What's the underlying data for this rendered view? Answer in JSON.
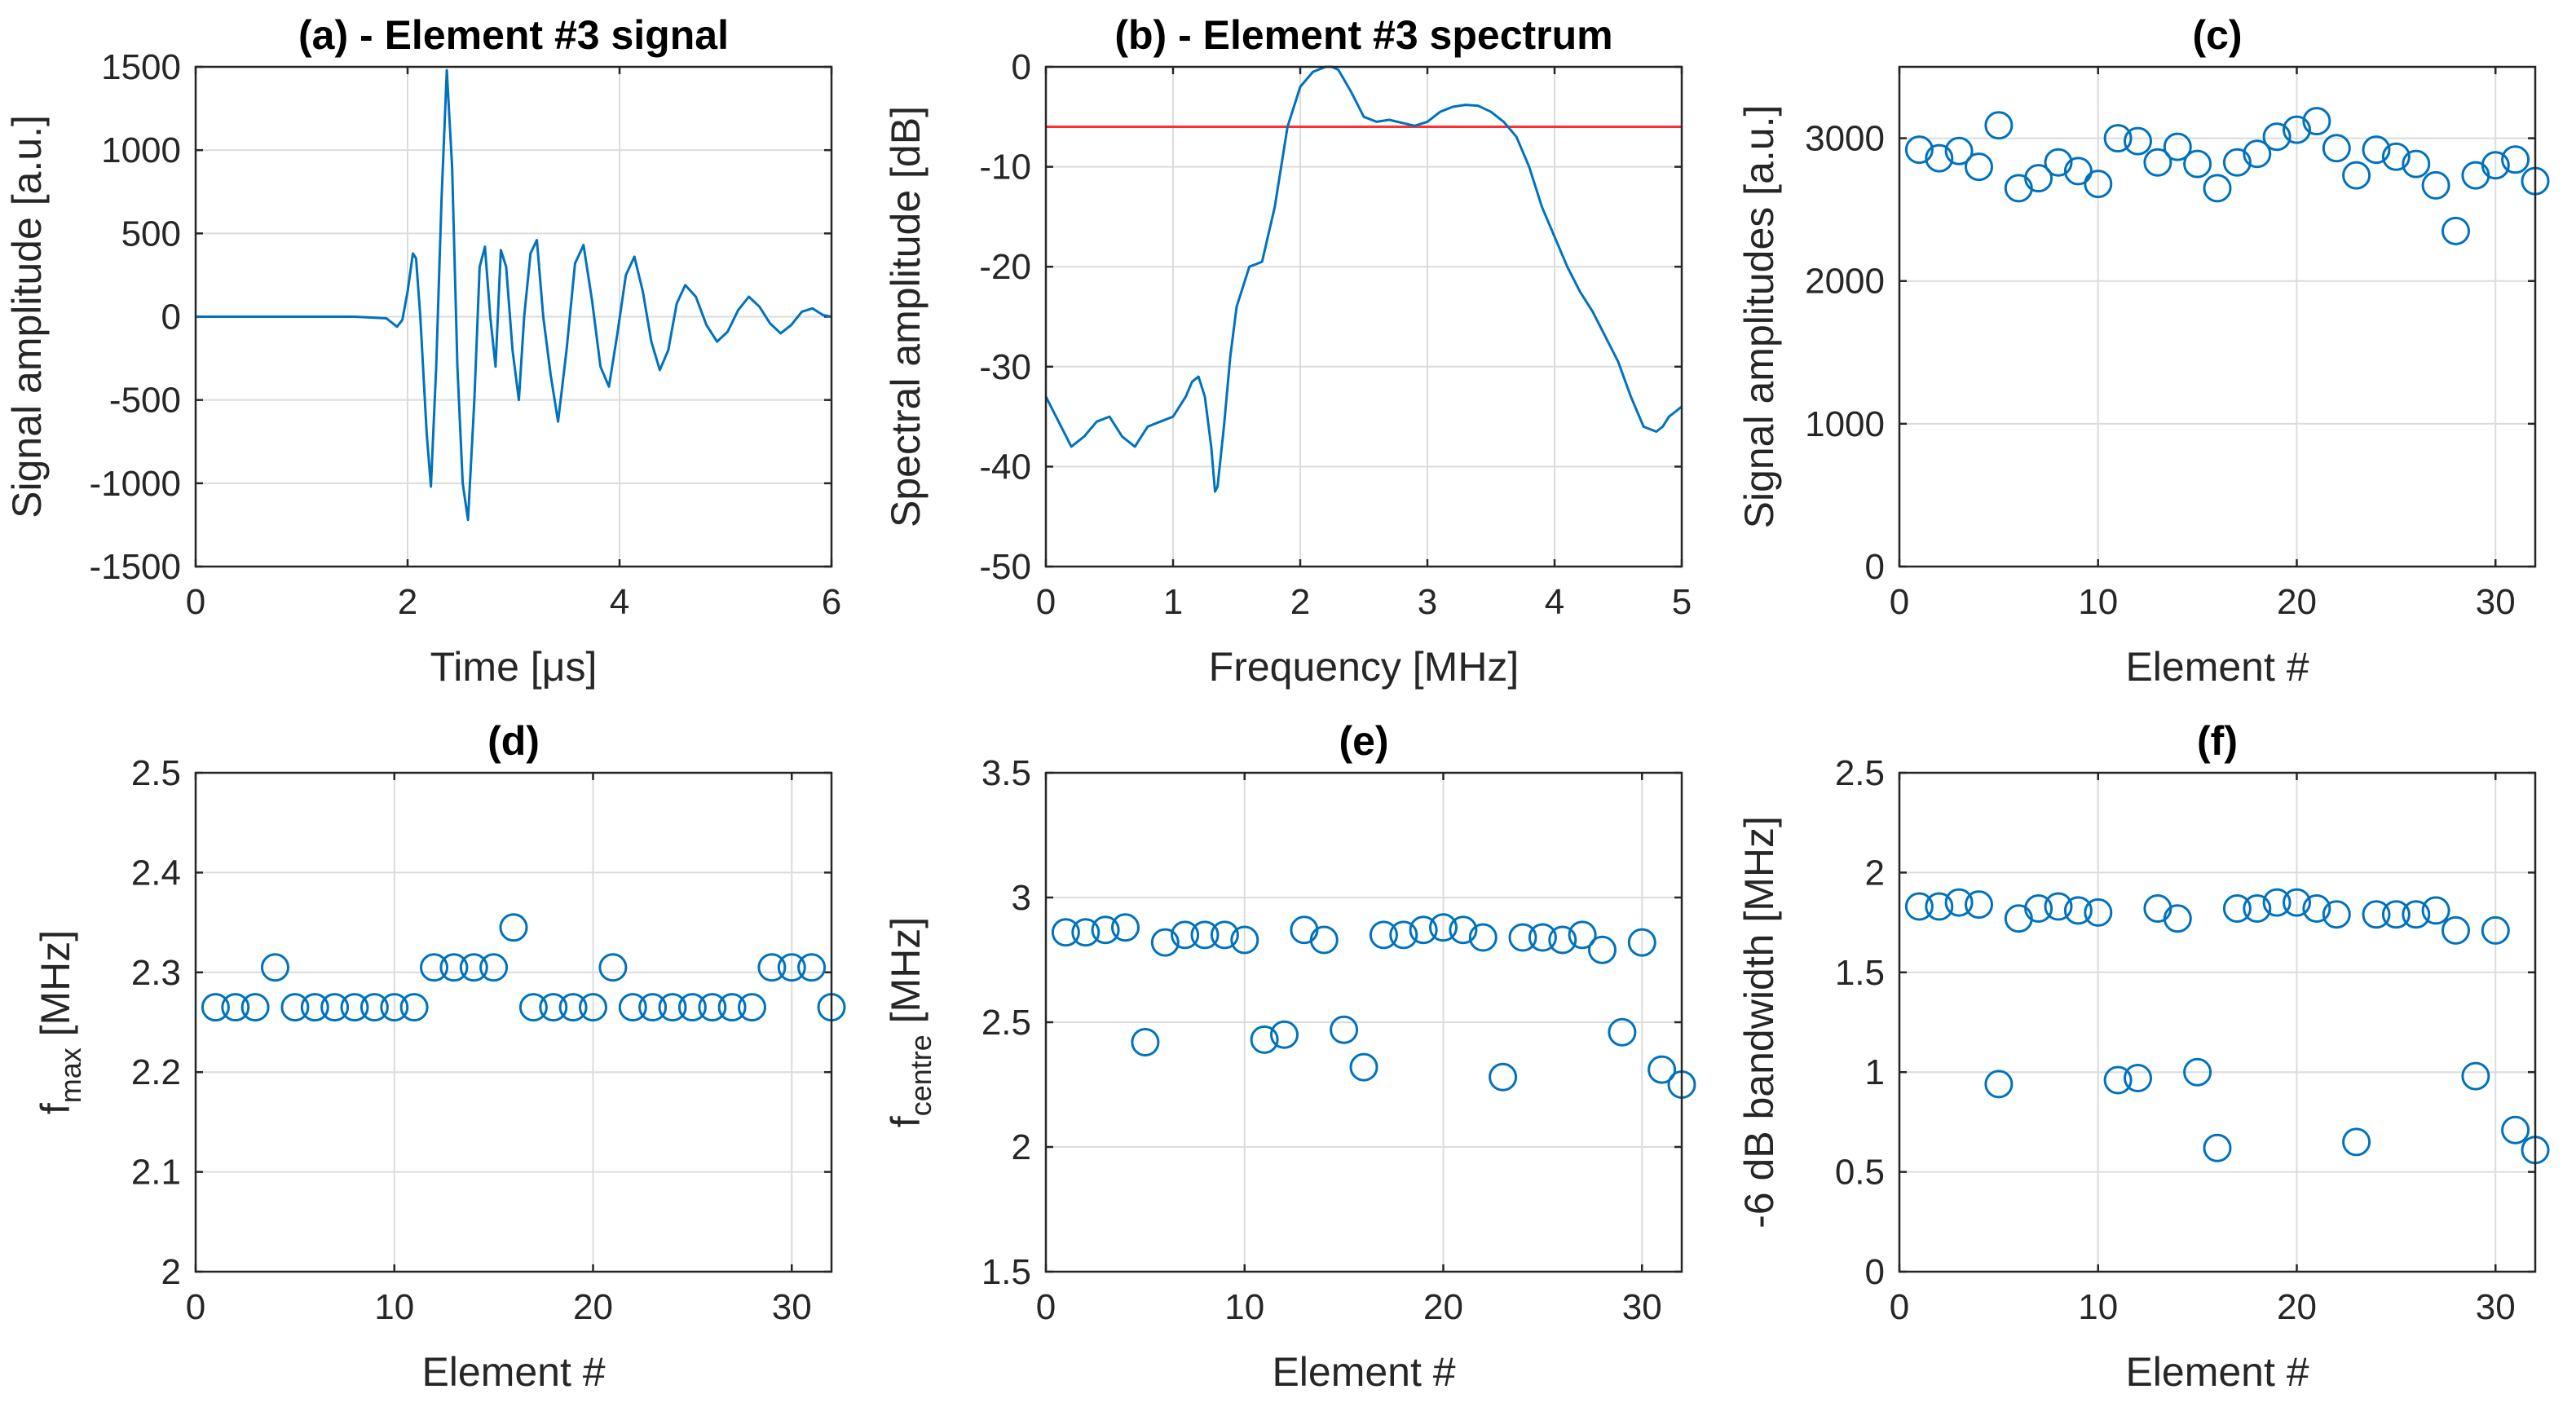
{
  "chart_data": [
    {
      "id": "a",
      "type": "line",
      "title": "(a) - Element #3 signal",
      "xlabel": "Time [μs]",
      "ylabel": "Signal amplitude [a.u.]",
      "xlim": [
        0,
        6
      ],
      "ylim": [
        -1500,
        1500
      ],
      "xticks": [
        0,
        2,
        4,
        6
      ],
      "xtick_labels": [
        "0",
        "2",
        "4",
        "6"
      ],
      "yticks": [
        -1500,
        -1000,
        -500,
        0,
        500,
        1000,
        1500
      ],
      "ytick_labels": [
        "-1500",
        "-1000",
        "-500",
        "0",
        "500",
        "1000",
        "1500"
      ],
      "series": [
        {
          "name": "signal",
          "x": [
            0,
            0.5,
            1.0,
            1.5,
            1.8,
            1.9,
            1.95,
            2.0,
            2.05,
            2.08,
            2.12,
            2.18,
            2.22,
            2.27,
            2.32,
            2.37,
            2.42,
            2.47,
            2.52,
            2.57,
            2.63,
            2.68,
            2.73,
            2.78,
            2.83,
            2.88,
            2.93,
            2.99,
            3.05,
            3.1,
            3.16,
            3.22,
            3.28,
            3.35,
            3.42,
            3.5,
            3.58,
            3.66,
            3.74,
            3.82,
            3.9,
            3.98,
            4.06,
            4.14,
            4.22,
            4.3,
            4.38,
            4.46,
            4.54,
            4.62,
            4.72,
            4.82,
            4.92,
            5.02,
            5.12,
            5.22,
            5.32,
            5.42,
            5.52,
            5.62,
            5.72,
            5.82,
            5.92,
            6.0
          ],
          "y": [
            0,
            0,
            0,
            0,
            -10,
            -60,
            -20,
            150,
            380,
            350,
            0,
            -700,
            -1020,
            -300,
            700,
            1480,
            900,
            -300,
            -1000,
            -1220,
            -500,
            300,
            420,
            0,
            -300,
            400,
            300,
            -200,
            -500,
            0,
            380,
            460,
            0,
            -350,
            -630,
            -200,
            320,
            430,
            100,
            -300,
            -420,
            -100,
            250,
            360,
            150,
            -150,
            -320,
            -200,
            80,
            190,
            120,
            -50,
            -150,
            -90,
            40,
            120,
            60,
            -40,
            -100,
            -50,
            30,
            50,
            10,
            0
          ]
        }
      ]
    },
    {
      "id": "b",
      "type": "line",
      "title": "(b) - Element #3 spectrum",
      "xlabel": "Frequency [MHz]",
      "ylabel": "Spectral amplitude [dB]",
      "xlim": [
        0,
        5
      ],
      "ylim": [
        -50,
        0
      ],
      "xticks": [
        0,
        1,
        2,
        3,
        4,
        5
      ],
      "xtick_labels": [
        "0",
        "1",
        "2",
        "3",
        "4",
        "5"
      ],
      "yticks": [
        -50,
        -40,
        -30,
        -20,
        -10,
        0
      ],
      "ytick_labels": [
        "-50",
        "-40",
        "-30",
        "-20",
        "-10",
        "0"
      ],
      "reference_line": {
        "value": -6,
        "color": "#ff3030"
      },
      "series": [
        {
          "name": "spectrum",
          "x": [
            0,
            0.1,
            0.2,
            0.3,
            0.4,
            0.5,
            0.55,
            0.6,
            0.7,
            0.8,
            0.9,
            1.0,
            1.1,
            1.15,
            1.2,
            1.25,
            1.3,
            1.33,
            1.35,
            1.4,
            1.45,
            1.5,
            1.6,
            1.7,
            1.8,
            1.9,
            2.0,
            2.1,
            2.2,
            2.25,
            2.3,
            2.4,
            2.5,
            2.6,
            2.7,
            2.8,
            2.9,
            3.0,
            3.1,
            3.2,
            3.3,
            3.4,
            3.5,
            3.6,
            3.7,
            3.8,
            3.9,
            4.0,
            4.1,
            4.2,
            4.3,
            4.4,
            4.5,
            4.6,
            4.7,
            4.8,
            4.85,
            4.9,
            4.95,
            5.0
          ],
          "y": [
            -33,
            -35.5,
            -38,
            -37,
            -35.5,
            -35,
            -36,
            -37,
            -38,
            -36,
            -35.5,
            -35,
            -33,
            -31.5,
            -31,
            -33,
            -38,
            -42.5,
            -42,
            -36,
            -29,
            -24,
            -20,
            -19.5,
            -14,
            -6,
            -2,
            -0.5,
            0,
            0,
            -0.3,
            -2.5,
            -5,
            -5.5,
            -5.3,
            -5.6,
            -5.9,
            -5.5,
            -4.5,
            -4,
            -3.8,
            -3.9,
            -4.5,
            -5.5,
            -7,
            -10,
            -14,
            -17,
            -20,
            -22.5,
            -24.5,
            -27,
            -29.5,
            -33,
            -36,
            -36.5,
            -36,
            -35,
            -34.5,
            -34
          ]
        }
      ]
    },
    {
      "id": "c",
      "type": "scatter",
      "title": "(c)",
      "xlabel": "Element #",
      "ylabel": "Signal amplitudes [a.u.]",
      "xlim": [
        0,
        32
      ],
      "ylim": [
        0,
        3500
      ],
      "xticks": [
        0,
        10,
        20,
        30
      ],
      "xtick_labels": [
        "0",
        "10",
        "20",
        "30"
      ],
      "yticks": [
        0,
        1000,
        2000,
        3000
      ],
      "ytick_labels": [
        "0",
        "1000",
        "2000",
        "3000"
      ],
      "series": [
        {
          "name": "Signal amplitudes",
          "x": [
            1,
            2,
            3,
            4,
            5,
            6,
            7,
            8,
            9,
            10,
            11,
            12,
            13,
            14,
            15,
            16,
            17,
            18,
            19,
            20,
            21,
            22,
            23,
            24,
            25,
            26,
            27,
            28,
            29,
            30,
            31,
            32
          ],
          "y": [
            2920,
            2860,
            2910,
            2800,
            3090,
            2650,
            2720,
            2830,
            2770,
            2680,
            3000,
            2980,
            2830,
            2940,
            2820,
            2650,
            2830,
            2890,
            3010,
            3060,
            3120,
            2930,
            2740,
            2920,
            2870,
            2820,
            2670,
            2350,
            2740,
            2810,
            2850,
            2700
          ]
        }
      ]
    },
    {
      "id": "d",
      "type": "scatter",
      "title": "(d)",
      "xlabel": "Element #",
      "ylabel_main": "f",
      "ylabel_sub": "max",
      "ylabel_rest": " [MHz]",
      "xlim": [
        0,
        32
      ],
      "ylim": [
        2,
        2.5
      ],
      "xticks": [
        0,
        10,
        20,
        30
      ],
      "xtick_labels": [
        "0",
        "10",
        "20",
        "30"
      ],
      "yticks": [
        2,
        2.1,
        2.2,
        2.3,
        2.4,
        2.5
      ],
      "ytick_labels": [
        "2",
        "2.1",
        "2.2",
        "2.3",
        "2.4",
        "2.5"
      ],
      "series": [
        {
          "name": "f_max",
          "x": [
            1,
            2,
            3,
            4,
            5,
            6,
            7,
            8,
            9,
            10,
            11,
            12,
            13,
            14,
            15,
            16,
            17,
            18,
            19,
            20,
            21,
            22,
            23,
            24,
            25,
            26,
            27,
            28,
            29,
            30,
            31,
            32
          ],
          "y": [
            2.265,
            2.265,
            2.265,
            2.305,
            2.265,
            2.265,
            2.265,
            2.265,
            2.265,
            2.265,
            2.265,
            2.305,
            2.305,
            2.305,
            2.305,
            2.345,
            2.265,
            2.265,
            2.265,
            2.265,
            2.305,
            2.265,
            2.265,
            2.265,
            2.265,
            2.265,
            2.265,
            2.265,
            2.305,
            2.305,
            2.305,
            2.265
          ]
        }
      ]
    },
    {
      "id": "e",
      "type": "scatter",
      "title": "(e)",
      "xlabel": "Element #",
      "ylabel_main": "f",
      "ylabel_sub": "centre",
      "ylabel_rest": " [MHz]",
      "xlim": [
        0,
        32
      ],
      "ylim": [
        1.5,
        3.5
      ],
      "xticks": [
        0,
        10,
        20,
        30
      ],
      "xtick_labels": [
        "0",
        "10",
        "20",
        "30"
      ],
      "yticks": [
        1.5,
        2,
        2.5,
        3,
        3.5
      ],
      "ytick_labels": [
        "1.5",
        "2",
        "2.5",
        "3",
        "3.5"
      ],
      "series": [
        {
          "name": "f_centre",
          "x": [
            1,
            2,
            3,
            4,
            5,
            6,
            7,
            8,
            9,
            10,
            11,
            12,
            13,
            14,
            15,
            16,
            17,
            18,
            19,
            20,
            21,
            22,
            23,
            24,
            25,
            26,
            27,
            28,
            29,
            30,
            31,
            32
          ],
          "y": [
            2.86,
            2.86,
            2.87,
            2.88,
            2.42,
            2.82,
            2.85,
            2.85,
            2.85,
            2.83,
            2.43,
            2.45,
            2.87,
            2.83,
            2.47,
            2.32,
            2.85,
            2.85,
            2.87,
            2.88,
            2.87,
            2.84,
            2.28,
            2.84,
            2.84,
            2.83,
            2.85,
            2.79,
            2.46,
            2.82,
            2.31,
            2.25
          ]
        }
      ]
    },
    {
      "id": "f",
      "type": "scatter",
      "title": "(f)",
      "xlabel": "Element #",
      "ylabel": "-6 dB bandwidth [MHz]",
      "xlim": [
        0,
        32
      ],
      "ylim": [
        0,
        2.5
      ],
      "xticks": [
        0,
        10,
        20,
        30
      ],
      "xtick_labels": [
        "0",
        "10",
        "20",
        "30"
      ],
      "yticks": [
        0,
        0.5,
        1,
        1.5,
        2,
        2.5
      ],
      "ytick_labels": [
        "0",
        "0.5",
        "1",
        "1.5",
        "2",
        "2.5"
      ],
      "series": [
        {
          "name": "-6 dB bandwidth",
          "x": [
            1,
            2,
            3,
            4,
            5,
            6,
            7,
            8,
            9,
            10,
            11,
            12,
            13,
            14,
            15,
            16,
            17,
            18,
            19,
            20,
            21,
            22,
            23,
            24,
            25,
            26,
            27,
            28,
            29,
            30,
            31,
            32
          ],
          "y": [
            1.83,
            1.83,
            1.85,
            1.84,
            0.94,
            1.77,
            1.82,
            1.83,
            1.81,
            1.8,
            0.96,
            0.97,
            1.82,
            1.77,
            1.0,
            0.62,
            1.82,
            1.82,
            1.85,
            1.85,
            1.82,
            1.79,
            0.65,
            1.79,
            1.79,
            1.79,
            1.81,
            1.71,
            0.98,
            1.71,
            0.71,
            0.61
          ]
        }
      ]
    }
  ],
  "colors": {
    "series": "#0072bd",
    "reference_line": "#ff3030",
    "grid": "#dcdcdc",
    "axes": "#262626"
  }
}
